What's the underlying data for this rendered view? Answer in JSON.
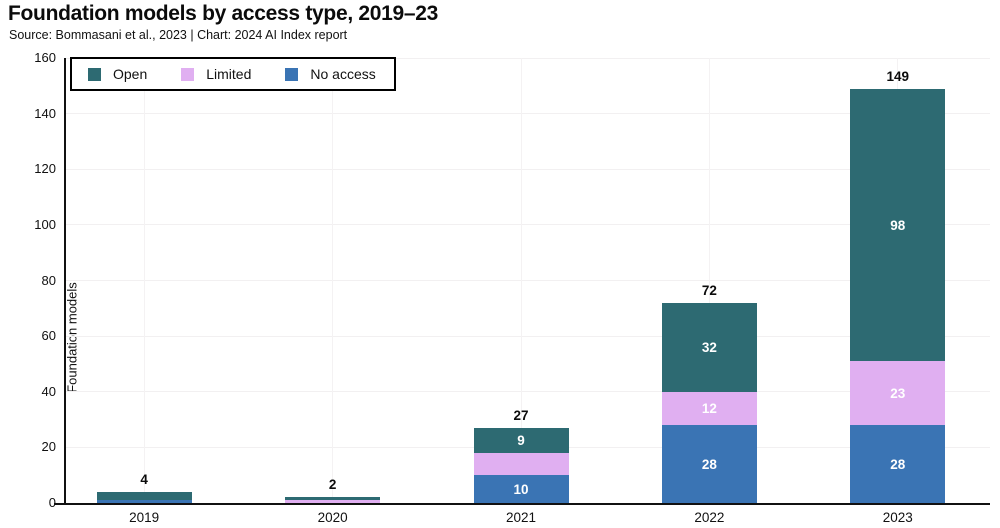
{
  "header": {
    "title": "Foundation models by access type, 2019–23",
    "source": "Source: Bommasani et al., 2023 | Chart: 2024 AI Index report"
  },
  "colors": {
    "open": "#2d6a72",
    "limited": "#e0aff1",
    "no_access": "#3a74b4",
    "axis": "#111111",
    "grid": "#f2f0f1"
  },
  "chart_data": {
    "type": "bar",
    "stacked": true,
    "title": "Foundation models by access type, 2019–23",
    "xlabel": "",
    "ylabel": "Foundation models",
    "ylim": [
      0,
      160
    ],
    "yticks": [
      0,
      20,
      40,
      60,
      80,
      100,
      120,
      140,
      160
    ],
    "grid": true,
    "categories": [
      "2019",
      "2020",
      "2021",
      "2022",
      "2023"
    ],
    "series": [
      {
        "name": "No access",
        "key": "no_access",
        "color": "#3a74b4",
        "values": [
          1,
          0,
          10,
          28,
          28
        ],
        "labels": [
          "",
          "",
          "10",
          "28",
          "28"
        ]
      },
      {
        "name": "Limited",
        "key": "limited",
        "color": "#e0aff1",
        "values": [
          0,
          1,
          8,
          12,
          23
        ],
        "labels": [
          "",
          "",
          "",
          "12",
          "23"
        ]
      },
      {
        "name": "Open",
        "key": "open",
        "color": "#2d6a72",
        "values": [
          3,
          1,
          9,
          32,
          98
        ],
        "labels": [
          "",
          "",
          "9",
          "32",
          "98"
        ]
      }
    ],
    "totals": [
      "4",
      "2",
      "27",
      "72",
      "149"
    ],
    "legend": {
      "position": "top-left",
      "entries": [
        {
          "key": "open",
          "label": "Open",
          "color": "#2d6a72"
        },
        {
          "key": "limited",
          "label": "Limited",
          "color": "#e0aff1"
        },
        {
          "key": "no_access",
          "label": "No access",
          "color": "#3a74b4"
        }
      ]
    }
  }
}
